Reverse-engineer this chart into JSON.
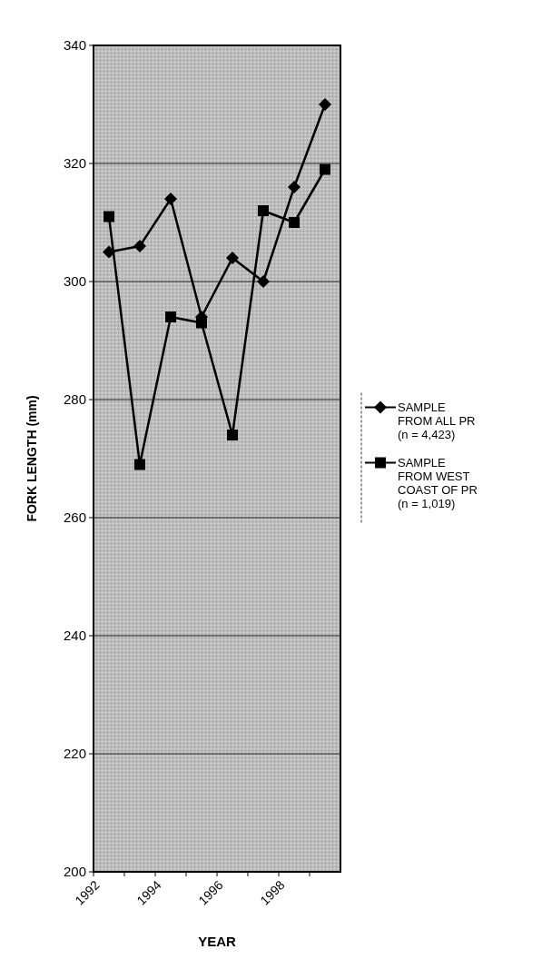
{
  "chart_data": {
    "type": "line",
    "xlabel": "YEAR",
    "ylabel": "FORK LENGTH (mm)",
    "x": [
      1992.5,
      1993.5,
      1994.5,
      1995.5,
      1996.5,
      1997.5,
      1998.5,
      1999.5
    ],
    "xlim": [
      1992,
      2000
    ],
    "xticks": [
      1992,
      {
        "value": 1993,
        "label": null
      },
      1994,
      {
        "value": 1995,
        "label": null
      },
      1996,
      {
        "value": 1997,
        "label": null
      },
      1998,
      {
        "value": 1999,
        "label": null
      }
    ],
    "ylim": [
      200,
      340
    ],
    "yticks": [
      200,
      220,
      240,
      260,
      280,
      300,
      320,
      340
    ],
    "grid": "y",
    "legend": "right",
    "series": [
      {
        "name": "SAMPLE FROM ALL PR (n = 4,423)",
        "color": "#000000",
        "marker": "diamond",
        "values": [
          305,
          306,
          314,
          294,
          304,
          300,
          316,
          330
        ]
      },
      {
        "name": "SAMPLE FROM WEST COAST OF PR (n = 1,019)",
        "color": "#000000",
        "marker": "square",
        "values": [
          311,
          269,
          294,
          293,
          274,
          312,
          310,
          319
        ]
      }
    ]
  }
}
